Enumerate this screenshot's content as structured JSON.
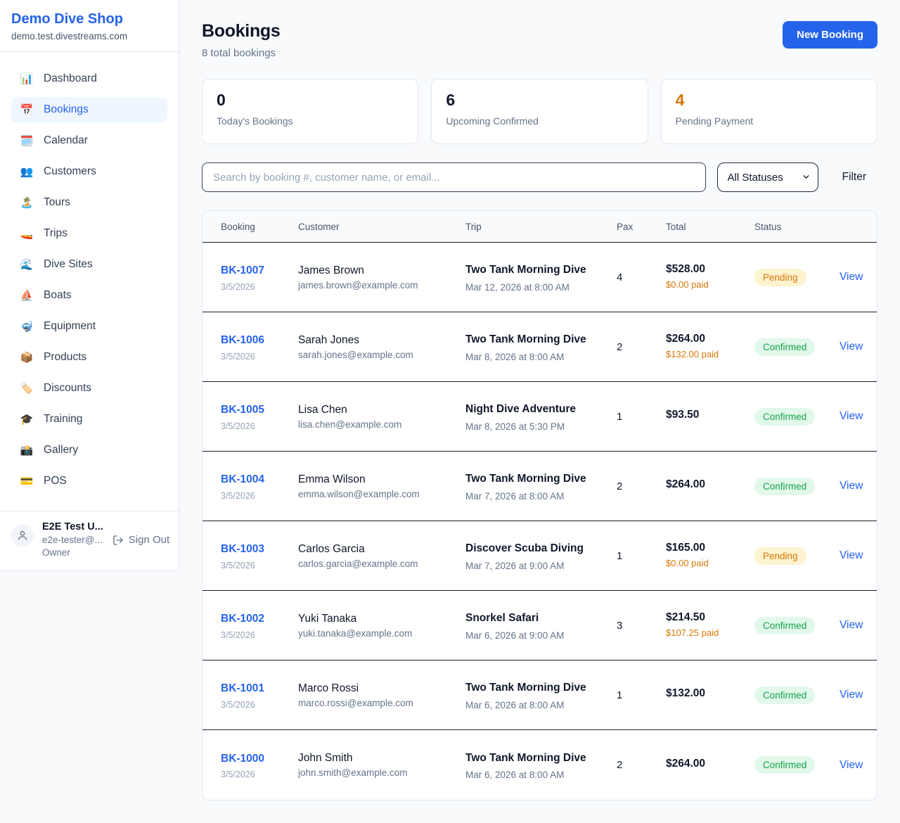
{
  "sidebar": {
    "shop_name": "Demo Dive Shop",
    "domain": "demo.test.divestreams.com",
    "items": [
      {
        "label": "Dashboard",
        "icon": "📊",
        "icon_name": "bar-chart-icon",
        "active": false
      },
      {
        "label": "Bookings",
        "icon": "📅",
        "icon_name": "calendar-date-icon",
        "active": true
      },
      {
        "label": "Calendar",
        "icon": "🗓️",
        "icon_name": "spiral-calendar-icon",
        "active": false
      },
      {
        "label": "Customers",
        "icon": "👥",
        "icon_name": "people-icon",
        "active": false
      },
      {
        "label": "Tours",
        "icon": "🏝️",
        "icon_name": "island-icon",
        "active": false
      },
      {
        "label": "Trips",
        "icon": "🚤",
        "icon_name": "speedboat-icon",
        "active": false
      },
      {
        "label": "Dive Sites",
        "icon": "🌊",
        "icon_name": "wave-icon",
        "active": false
      },
      {
        "label": "Boats",
        "icon": "⛵",
        "icon_name": "sailboat-icon",
        "active": false
      },
      {
        "label": "Equipment",
        "icon": "🤿",
        "icon_name": "diving-mask-icon",
        "active": false
      },
      {
        "label": "Products",
        "icon": "📦",
        "icon_name": "package-icon",
        "active": false
      },
      {
        "label": "Discounts",
        "icon": "🏷️",
        "icon_name": "tag-icon",
        "active": false
      },
      {
        "label": "Training",
        "icon": "🎓",
        "icon_name": "graduation-cap-icon",
        "active": false
      },
      {
        "label": "Gallery",
        "icon": "📸",
        "icon_name": "camera-icon",
        "active": false
      },
      {
        "label": "POS",
        "icon": "💳",
        "icon_name": "credit-card-icon",
        "active": false
      }
    ],
    "user": {
      "name": "E2E Test U...",
      "email": "e2e-tester@...",
      "role": "Owner",
      "sign_out_label": "Sign Out"
    }
  },
  "header": {
    "title": "Bookings",
    "subtitle": "8 total bookings",
    "new_booking_label": "New Booking"
  },
  "stats": [
    {
      "value": "0",
      "label": "Today's Bookings",
      "color": "#0f172a"
    },
    {
      "value": "6",
      "label": "Upcoming Confirmed",
      "color": "#0f172a"
    },
    {
      "value": "4",
      "label": "Pending Payment",
      "color": "#d97706"
    }
  ],
  "filters": {
    "search_placeholder": "Search by booking #, customer name, or email...",
    "status_selected": "All Statuses",
    "filter_label": "Filter"
  },
  "table": {
    "columns": [
      "Booking",
      "Customer",
      "Trip",
      "Pax",
      "Total",
      "Status"
    ],
    "view_label": "View",
    "rows": [
      {
        "booking_id": "BK-1007",
        "booking_date": "3/5/2026",
        "customer_name": "James Brown",
        "customer_email": "james.brown@example.com",
        "trip_name": "Two Tank Morning Dive",
        "trip_datetime": "Mar 12, 2026 at 8:00 AM",
        "pax": "4",
        "total": "$528.00",
        "paid": "$0.00 paid",
        "status": "Pending",
        "id_one_line": true
      },
      {
        "booking_id": "BK-1006",
        "booking_date": "3/5/2026",
        "customer_name": "Sarah Jones",
        "customer_email": "sarah.jones@example.com",
        "trip_name": "Two Tank Morning Dive",
        "trip_datetime": "Mar 8, 2026 at 8:00 AM",
        "pax": "2",
        "total": "$264.00",
        "paid": "$132.00 paid",
        "status": "Confirmed",
        "id_one_line": false
      },
      {
        "booking_id": "BK-1005",
        "booking_date": "3/5/2026",
        "customer_name": "Lisa Chen",
        "customer_email": "lisa.chen@example.com",
        "trip_name": "Night Dive Adventure",
        "trip_datetime": "Mar 8, 2026 at 5:30 PM",
        "pax": "1",
        "total": "$93.50",
        "paid": "",
        "status": "Confirmed",
        "id_one_line": false
      },
      {
        "booking_id": "BK-1004",
        "booking_date": "3/5/2026",
        "customer_name": "Emma Wilson",
        "customer_email": "emma.wilson@example.com",
        "trip_name": "Two Tank Morning Dive",
        "trip_datetime": "Mar 7, 2026 at 8:00 AM",
        "pax": "2",
        "total": "$264.00",
        "paid": "",
        "status": "Confirmed",
        "id_one_line": false
      },
      {
        "booking_id": "BK-1003",
        "booking_date": "3/5/2026",
        "customer_name": "Carlos Garcia",
        "customer_email": "carlos.garcia@example.com",
        "trip_name": "Discover Scuba Diving",
        "trip_datetime": "Mar 7, 2026 at 9:00 AM",
        "pax": "1",
        "total": "$165.00",
        "paid": "$0.00 paid",
        "status": "Pending",
        "id_one_line": false
      },
      {
        "booking_id": "BK-1002",
        "booking_date": "3/5/2026",
        "customer_name": "Yuki Tanaka",
        "customer_email": "yuki.tanaka@example.com",
        "trip_name": "Snorkel Safari",
        "trip_datetime": "Mar 6, 2026 at 9:00 AM",
        "pax": "3",
        "total": "$214.50",
        "paid": "$107.25 paid",
        "status": "Confirmed",
        "id_one_line": false
      },
      {
        "booking_id": "BK-1001",
        "booking_date": "3/5/2026",
        "customer_name": "Marco Rossi",
        "customer_email": "marco.rossi@example.com",
        "trip_name": "Two Tank Morning Dive",
        "trip_datetime": "Mar 6, 2026 at 8:00 AM",
        "pax": "1",
        "total": "$132.00",
        "paid": "",
        "status": "Confirmed",
        "id_one_line": true
      },
      {
        "booking_id": "BK-1000",
        "booking_date": "3/5/2026",
        "customer_name": "John Smith",
        "customer_email": "john.smith@example.com",
        "trip_name": "Two Tank Morning Dive",
        "trip_datetime": "Mar 6, 2026 at 8:00 AM",
        "pax": "2",
        "total": "$264.00",
        "paid": "",
        "status": "Confirmed",
        "id_one_line": false
      }
    ]
  },
  "colors": {
    "accent_blue": "#2563eb",
    "pending_text": "#d97706",
    "pending_bg": "#fdf3cf",
    "confirmed_text": "#16a34a",
    "confirmed_bg": "#e1f8ea",
    "paid_orange": "#d97706"
  }
}
